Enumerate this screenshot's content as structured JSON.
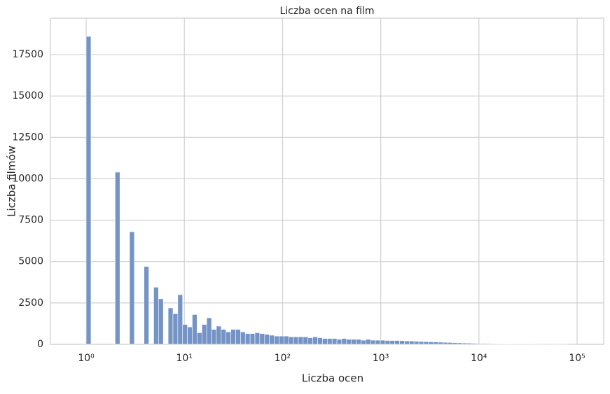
{
  "chart_data": {
    "type": "histogram",
    "title": "Liczba ocen na film",
    "x_label": "Liczba ocen",
    "y_label": "Liczba filmów",
    "bins": [
      1,
      1.12,
      1.254,
      1.404,
      1.572,
      1.761,
      1.971,
      2.207,
      2.472,
      2.767,
      3.098,
      3.469,
      3.885,
      4.35,
      4.87,
      5.454,
      6.107,
      6.838,
      7.656,
      8.573,
      9.598,
      10.75,
      12.03,
      13.48,
      15.09,
      16.9,
      18.92,
      21.18,
      23.72,
      26.56,
      29.74,
      33.3,
      37.29,
      41.75,
      46.75,
      52.35,
      58.61,
      65.63,
      73.49,
      82.29,
      92.14,
      103.2,
      115.5,
      129.3,
      144.8,
      162.2,
      181.6,
      203.3,
      227.7,
      254.9,
      285.5,
      319.7,
      357.9,
      400.8,
      448.8,
      502.5,
      562.7,
      630.1,
      705.5,
      790,
      884.6,
      990.1,
      1109,
      1241,
      1390,
      1557,
      1743,
      1952,
      2185,
      2447,
      2740,
      3068,
      3435,
      3846,
      4307,
      4823,
      5400,
      6047,
      6771,
      7581,
      8489,
      9505,
      10640,
      11920,
      13340,
      14940,
      16730,
      18740,
      20980,
      23490,
      26300,
      29450,
      32980,
      36930,
      41340,
      46300,
      51840,
      58040,
      64990,
      72780,
      81470
    ],
    "values": [
      18600,
      0,
      0,
      0,
      0,
      0,
      10400,
      0,
      0,
      6800,
      0,
      0,
      4700,
      0,
      3450,
      2750,
      0,
      2200,
      1850,
      3000,
      1200,
      1050,
      1800,
      700,
      1200,
      1600,
      900,
      1100,
      900,
      750,
      900,
      900,
      750,
      650,
      650,
      700,
      650,
      600,
      550,
      500,
      500,
      500,
      450,
      450,
      450,
      450,
      400,
      450,
      400,
      350,
      350,
      350,
      300,
      350,
      300,
      300,
      300,
      250,
      300,
      250,
      250,
      250,
      230,
      230,
      230,
      220,
      200,
      200,
      180,
      170,
      160,
      150,
      140,
      130,
      120,
      110,
      100,
      90,
      80,
      70,
      60,
      50,
      45,
      40,
      35,
      30,
      25,
      20,
      15,
      12,
      10,
      8,
      6,
      5,
      4,
      3,
      2,
      2,
      1,
      1
    ],
    "color": "#7594c6",
    "x_log_scale": true,
    "grid": true,
    "xlim": [
      0.4325,
      186600
    ],
    "xticks": [
      {
        "value": 1,
        "label": "10⁰"
      },
      {
        "value": 10,
        "label": "10¹"
      },
      {
        "value": 100,
        "label": "10²"
      },
      {
        "value": 1000,
        "label": "10³"
      },
      {
        "value": 10000,
        "label": "10⁴"
      },
      {
        "value": 100000,
        "label": "10⁵"
      }
    ],
    "ylim": [
      0,
      19700
    ],
    "yticks": [
      0,
      2500,
      5000,
      7500,
      10000,
      12500,
      15000,
      17500
    ]
  }
}
